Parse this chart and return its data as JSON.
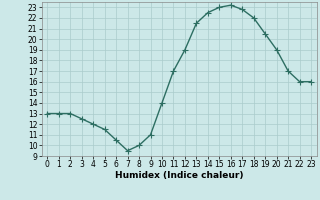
{
  "x": [
    0,
    1,
    2,
    3,
    4,
    5,
    6,
    7,
    8,
    9,
    10,
    11,
    12,
    13,
    14,
    15,
    16,
    17,
    18,
    19,
    20,
    21,
    22,
    23
  ],
  "y": [
    13,
    13,
    13,
    12.5,
    12,
    11.5,
    10.5,
    9.5,
    10,
    11,
    14,
    17,
    19,
    21.5,
    22.5,
    23,
    23.2,
    22.8,
    22,
    20.5,
    19,
    17,
    16,
    16
  ],
  "line_color": "#2d6e62",
  "marker": "+",
  "marker_size": 4,
  "bg_color": "#cce8e8",
  "grid_color": "#aacccc",
  "xlabel": "Humidex (Indice chaleur)",
  "xlim": [
    -0.5,
    23.5
  ],
  "ylim": [
    9,
    23.5
  ],
  "xticks": [
    0,
    1,
    2,
    3,
    4,
    5,
    6,
    7,
    8,
    9,
    10,
    11,
    12,
    13,
    14,
    15,
    16,
    17,
    18,
    19,
    20,
    21,
    22,
    23
  ],
  "yticks": [
    9,
    10,
    11,
    12,
    13,
    14,
    15,
    16,
    17,
    18,
    19,
    20,
    21,
    22,
    23
  ],
  "tick_fontsize": 5.5,
  "xlabel_fontsize": 6.5,
  "line_width": 1.0
}
